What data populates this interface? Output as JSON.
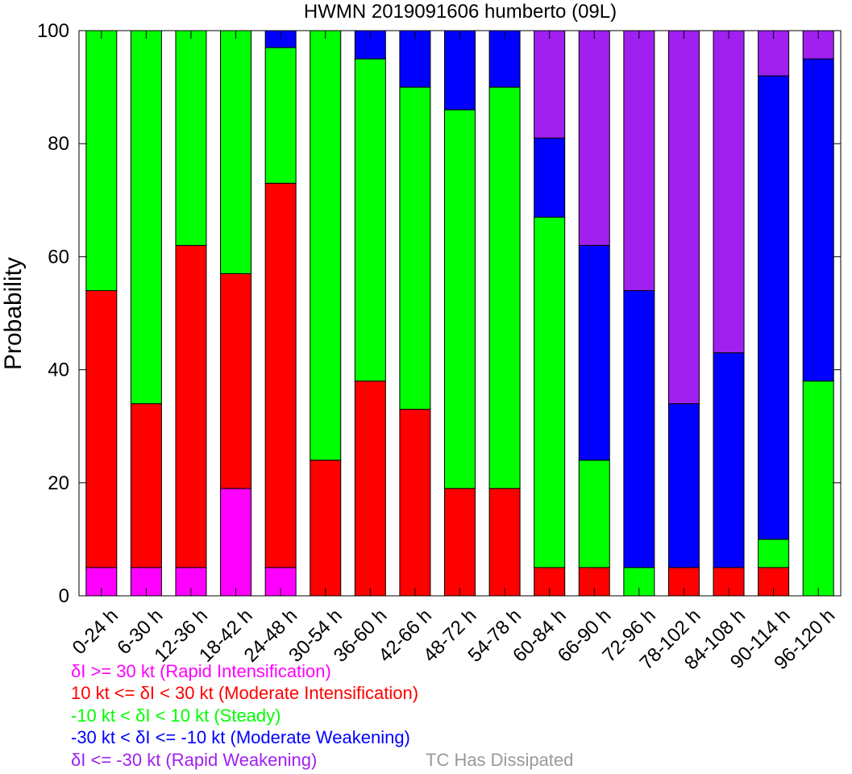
{
  "chart_data": {
    "type": "bar",
    "stacked": true,
    "title": "HWMN 2019091606 humberto (09L)",
    "ylabel": "Probability",
    "xlabel": "",
    "ylim": [
      0,
      100
    ],
    "yticks": [
      0,
      20,
      40,
      60,
      80,
      100
    ],
    "categories": [
      "0-24 h",
      "6-30 h",
      "12-36 h",
      "18-42 h",
      "24-48 h",
      "30-54 h",
      "36-60 h",
      "42-66 h",
      "48-72 h",
      "54-78 h",
      "60-84 h",
      "66-90 h",
      "72-96 h",
      "78-102 h",
      "84-108 h",
      "90-114 h",
      "96-120 h"
    ],
    "series": [
      {
        "name": "δI >= 30 kt (Rapid Intensification)",
        "color": "#ff00ff",
        "values": [
          5,
          5,
          5,
          19,
          5,
          0,
          0,
          0,
          0,
          0,
          0,
          0,
          0,
          0,
          0,
          0,
          0
        ]
      },
      {
        "name": "10 kt <= δI < 30 kt (Moderate Intensification)",
        "color": "#ff0000",
        "values": [
          49,
          29,
          57,
          38,
          68,
          24,
          38,
          33,
          19,
          19,
          5,
          5,
          0,
          5,
          5,
          5,
          0
        ]
      },
      {
        "name": "-10 kt < δI < 10 kt (Steady)",
        "color": "#00ff00",
        "values": [
          46,
          66,
          38,
          43,
          24,
          76,
          57,
          57,
          67,
          71,
          62,
          19,
          5,
          0,
          0,
          5,
          38
        ]
      },
      {
        "name": "-30 kt < δI <= -10 kt (Moderate Weakening)",
        "color": "#0000ff",
        "values": [
          0,
          0,
          0,
          0,
          3,
          0,
          5,
          10,
          14,
          10,
          14,
          38,
          49,
          29,
          38,
          82,
          57
        ]
      },
      {
        "name": "δI <= -30 kt (Rapid Weakening)",
        "color": "#a020f0",
        "values": [
          0,
          0,
          0,
          0,
          0,
          0,
          0,
          0,
          0,
          0,
          19,
          38,
          46,
          66,
          57,
          8,
          5
        ]
      }
    ],
    "dissipated_label": "TC Has Dissipated",
    "dissipated_color": "#999999",
    "legend_position": "bottom-left"
  }
}
